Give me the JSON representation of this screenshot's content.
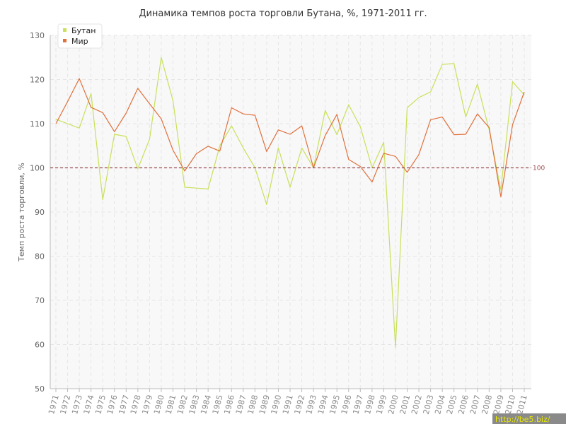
{
  "chart_data": {
    "type": "line",
    "title": "Динамика темпов роста торговли Бутана, %, 1971-2011 гг.",
    "xlabel": "",
    "ylabel": "Темп роста торговли, %",
    "ylim": [
      50,
      130
    ],
    "yticks": [
      50,
      60,
      70,
      80,
      90,
      100,
      110,
      120,
      130
    ],
    "grid": true,
    "legend_position": "top-left",
    "x": [
      "1971",
      "1972",
      "1973",
      "1974",
      "1975",
      "1976",
      "1977",
      "1978",
      "1979",
      "1980",
      "1981",
      "1982",
      "1983",
      "1984",
      "1985",
      "1986",
      "1987",
      "1988",
      "1989",
      "1990",
      "1991",
      "1992",
      "1993",
      "1994",
      "1995",
      "1996",
      "1997",
      "1998",
      "1999",
      "2000",
      "2001",
      "2002",
      "2003",
      "2004",
      "2005",
      "2006",
      "2007",
      "2008",
      "2009",
      "2010",
      "2011"
    ],
    "series": [
      {
        "name": "Бутан",
        "color": "#c8e05a",
        "values": [
          111.0,
          110.0,
          109.0,
          116.8,
          92.8,
          107.6,
          107.1,
          99.8,
          106.5,
          125.0,
          115.2,
          95.6,
          95.4,
          95.2,
          105.0,
          109.5,
          104.5,
          100.0,
          91.7,
          104.5,
          95.6,
          104.5,
          100.0,
          113.0,
          107.5,
          114.3,
          109.3,
          100.0,
          105.8,
          59.3,
          113.6,
          115.9,
          117.2,
          123.4,
          123.6,
          111.5,
          119.0,
          108.6,
          95.0,
          119.5,
          116.5
        ]
      },
      {
        "name": "Мир",
        "color": "#e0703c",
        "values": [
          110.0,
          115.0,
          120.2,
          113.7,
          112.5,
          108.2,
          112.4,
          118.0,
          114.5,
          111.1,
          104.0,
          99.3,
          103.2,
          104.9,
          103.8,
          113.6,
          112.2,
          111.9,
          103.7,
          108.6,
          107.6,
          109.5,
          100.0,
          107.3,
          112.1,
          101.9,
          100.3,
          96.8,
          103.3,
          102.6,
          99.0,
          103.0,
          110.9,
          111.5,
          107.5,
          107.6,
          112.2,
          109.1,
          93.4,
          109.8,
          117.2
        ]
      }
    ],
    "reference_line": {
      "value": 100,
      "label": "100",
      "color": "#9a4a50"
    }
  },
  "watermark": "http://be5.biz/"
}
